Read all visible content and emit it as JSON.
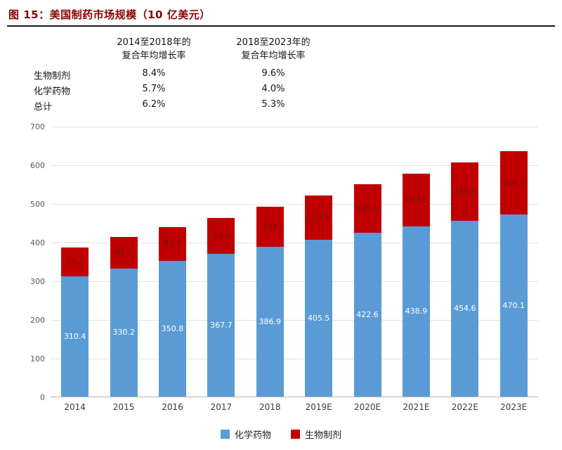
{
  "title": "图 15：美国制药市场规模（10 亿美元）",
  "stats_table": {
    "col_headers": [
      "2014至2018年的\n复合年均增长率",
      "2018至2023年的\n复合年均增长率"
    ],
    "rows": [
      {
        "label": "生物制剂",
        "cagr_2014_2018": "8.4%",
        "cagr_2018_2023": "9.6%"
      },
      {
        "label": "化学药物",
        "cagr_2014_2018": "5.7%",
        "cagr_2018_2023": "4.0%"
      },
      {
        "label": "总计",
        "cagr_2014_2018": "6.2%",
        "cagr_2018_2023": "5.3%"
      }
    ]
  },
  "chart_data": {
    "type": "bar",
    "stacked": true,
    "title": "美国制药市场规模（10 亿美元）",
    "categories": [
      "2014",
      "2015",
      "2016",
      "2017",
      "2018",
      "2019E",
      "2020E",
      "2021E",
      "2022E",
      "2023E"
    ],
    "series": [
      {
        "name": "化学药物",
        "color": "#5B9BD5",
        "values": [
          310.4,
          330.2,
          350.8,
          367.7,
          386.9,
          405.5,
          422.6,
          438.9,
          454.6,
          470.1
        ]
      },
      {
        "name": "生物制剂",
        "color": "#C00000",
        "values": [
          75.2,
          81.5,
          87.7,
          93.4,
          104,
          113.9,
          125.1,
          137.5,
          150.5,
          164.1
        ]
      }
    ],
    "ylim": [
      0,
      700
    ],
    "ytick_step": 100,
    "grid": true,
    "legend_position": "bottom"
  },
  "colors": {
    "chem_blue": "#5B9BD5",
    "bio_red": "#C00000",
    "title_red": "#8B0000"
  }
}
